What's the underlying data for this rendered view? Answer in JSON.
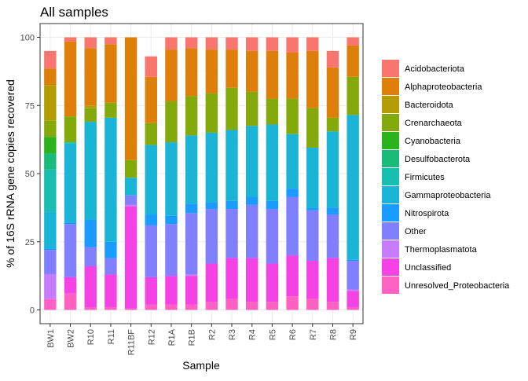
{
  "chart_data": {
    "type": "bar",
    "stacked": true,
    "title": "All samples",
    "xlabel": "Sample",
    "ylabel": "% of 16S rRNA gene copies recovered",
    "ylim": [
      0,
      100
    ],
    "yticks": [
      0,
      25,
      50,
      75,
      100
    ],
    "grid": true,
    "legend_position": "right",
    "categories": [
      "BW1",
      "BW2",
      "R10",
      "R11",
      "R11BF",
      "R12",
      "R1A",
      "R1B",
      "R2",
      "R3",
      "R4",
      "R5",
      "R6",
      "R7",
      "R8",
      "R9"
    ],
    "series": [
      {
        "name": "Unresolved_Proteobacteria",
        "color": "#FF61C3",
        "values": [
          4,
          6,
          1,
          1,
          0.5,
          2,
          2,
          2,
          3,
          4,
          3,
          3,
          5,
          4,
          3,
          1
        ]
      },
      {
        "name": "Unclassified",
        "color": "#F442E4",
        "values": [
          0,
          6,
          15,
          12,
          37.5,
          10,
          10.5,
          10.5,
          14,
          15,
          16,
          14,
          15,
          14,
          16,
          6
        ]
      },
      {
        "name": "Thermoplasmatota",
        "color": "#C77CFF",
        "values": [
          9,
          0,
          0,
          0,
          0.5,
          0,
          0,
          0.5,
          0,
          0,
          0,
          0,
          0,
          0,
          0,
          0.5
        ]
      },
      {
        "name": "Other",
        "color": "#7F7FFF",
        "values": [
          9,
          19.5,
          7,
          6,
          3.5,
          19,
          19,
          22.5,
          20,
          18,
          19.5,
          20,
          21.5,
          18.5,
          16,
          10.5
        ]
      },
      {
        "name": "Nitrospirota",
        "color": "#1A9BFF",
        "values": [
          0.5,
          0.5,
          10,
          6,
          0,
          4,
          3,
          3.5,
          2.5,
          3,
          3,
          3,
          3,
          1,
          2.5,
          0.5
        ]
      },
      {
        "name": "Gammaproteobacteria",
        "color": "#1AB4D7",
        "values": [
          13.5,
          29,
          36,
          45.5,
          6.5,
          25.5,
          27,
          25,
          25.5,
          26,
          26,
          28,
          20,
          22,
          28,
          53
        ]
      },
      {
        "name": "Firmicutes",
        "color": "#18BFB0",
        "values": [
          15.5,
          0.5,
          0,
          0,
          0,
          0,
          0,
          0,
          0,
          0,
          0,
          0,
          0,
          0,
          0,
          0
        ]
      },
      {
        "name": "Desulfobacterota",
        "color": "#1ABA78",
        "values": [
          6,
          0,
          0,
          0,
          0,
          0,
          0,
          0,
          0,
          0,
          0,
          0,
          0,
          0,
          0,
          0
        ]
      },
      {
        "name": "Cyanobacteria",
        "color": "#2BB31D",
        "values": [
          6,
          0,
          0,
          0,
          0,
          0,
          0,
          0,
          0,
          0,
          0,
          0,
          0,
          0,
          0,
          0
        ]
      },
      {
        "name": "Crenarchaeota",
        "color": "#83A90B",
        "values": [
          6,
          9.5,
          5,
          5.5,
          6.5,
          8,
          15,
          14.5,
          14.5,
          15.5,
          12.5,
          9.5,
          13,
          14.5,
          5,
          14
        ]
      },
      {
        "name": "Bacteroidota",
        "color": "#B49C07",
        "values": [
          13,
          0,
          1,
          0,
          0,
          0,
          0,
          0,
          0,
          0,
          0,
          0,
          0,
          0,
          0,
          0
        ]
      },
      {
        "name": "Alphaproteobacteria",
        "color": "#DE7F09",
        "values": [
          6,
          27.5,
          21,
          21.5,
          45,
          17,
          19,
          17.5,
          16,
          14,
          15,
          17.5,
          17,
          21,
          18.5,
          11.5
        ]
      },
      {
        "name": "Acidobacteriota",
        "color": "#F8766D",
        "values": [
          6.5,
          1.5,
          4,
          2.5,
          0,
          7.5,
          4.5,
          4,
          4.5,
          4.5,
          5,
          5,
          5.5,
          5,
          6,
          3
        ]
      }
    ],
    "legend_order": [
      "Acidobacteriota",
      "Alphaproteobacteria",
      "Bacteroidota",
      "Crenarchaeota",
      "Cyanobacteria",
      "Desulfobacterota",
      "Firmicutes",
      "Gammaproteobacteria",
      "Nitrospirota",
      "Other",
      "Thermoplasmatota",
      "Unclassified",
      "Unresolved_Proteobacteria"
    ]
  }
}
